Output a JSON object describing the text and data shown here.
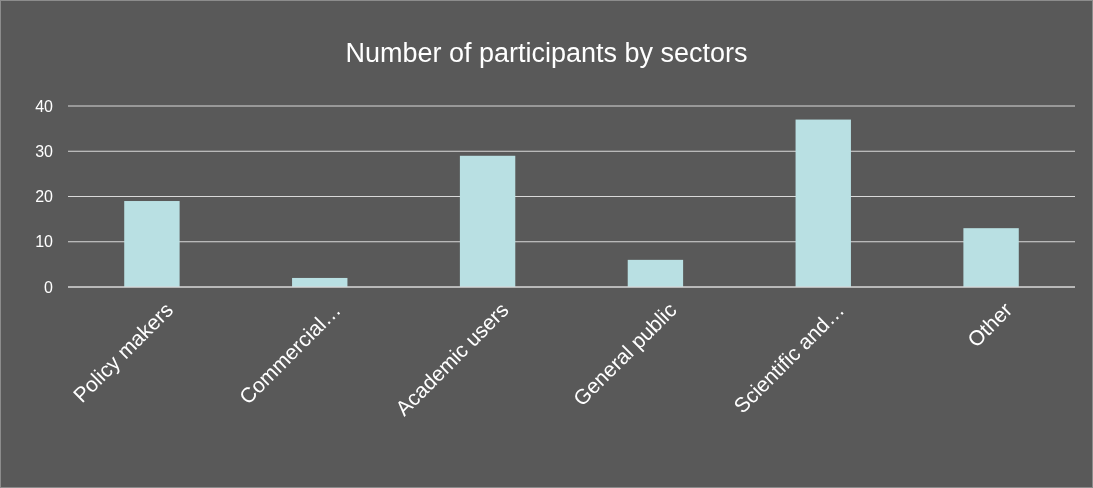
{
  "chart_data": {
    "type": "bar",
    "title": "Number of participants by sectors",
    "categories": [
      "Policy makers",
      "Commercial…",
      "Academic users",
      "General public",
      "Scientific and…",
      "Other"
    ],
    "values": [
      19,
      2,
      29,
      6,
      37,
      13
    ],
    "color": "#b9e0e3",
    "ylim": [
      0,
      40
    ],
    "yticks": [
      0,
      10,
      20,
      30,
      40
    ],
    "grid": true
  }
}
